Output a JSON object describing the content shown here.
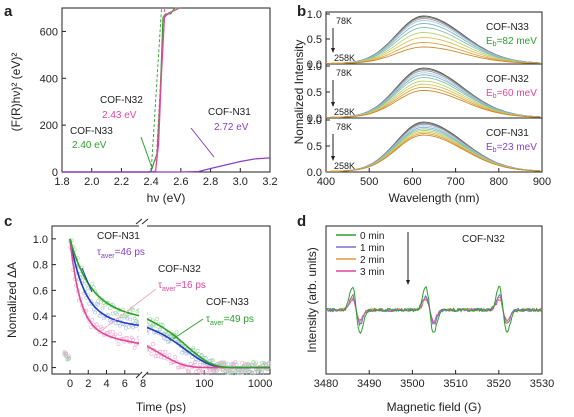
{
  "chart_data": [
    {
      "panel": "a",
      "type": "line",
      "panel_label": "a",
      "xlabel": "hν (eV)",
      "ylabel": "(F(R)hν)² (eV)²",
      "xlim": [
        1.8,
        3.2
      ],
      "ylim": [
        0,
        700
      ],
      "x_ticks": [
        "1.8",
        "2.0",
        "2.2",
        "2.4",
        "2.6",
        "2.8",
        "3.0",
        "3.2"
      ],
      "y_ticks": [
        "0",
        "200",
        "400",
        "600"
      ],
      "colors": {
        "COF-N33": "#2ca02c",
        "COF-N32": "#e0479b",
        "COF-N31": "#8a3fc4"
      },
      "series": [
        {
          "name": "COF-N33",
          "x": [
            1.8,
            2.38,
            2.4,
            2.44,
            2.46,
            2.48,
            2.5,
            2.53,
            2.56,
            2.59
          ],
          "y": [
            0,
            0,
            4,
            80,
            320,
            660,
            675,
            675,
            700,
            700
          ]
        },
        {
          "name": "COF-N32",
          "x": [
            1.8,
            2.4,
            2.43,
            2.45,
            2.47,
            2.49,
            2.52,
            2.56,
            2.59
          ],
          "y": [
            0,
            0,
            4,
            120,
            420,
            660,
            680,
            690,
            700
          ]
        },
        {
          "name": "COF-N31",
          "x": [
            1.8,
            2.6,
            2.72,
            2.8,
            2.9,
            3.0,
            3.1,
            3.2
          ],
          "y": [
            0,
            0,
            2,
            15,
            30,
            45,
            56,
            60
          ]
        }
      ],
      "annotations": {
        "n32_name": "COF-N32",
        "n32_val": "2.43 eV",
        "n33_name": "COF-N33",
        "n33_val": "2.40 eV",
        "n31_name": "COF-N31",
        "n31_val": "2.72 eV"
      }
    },
    {
      "panel": "b",
      "type": "line",
      "panel_label": "b",
      "xlabel": "Wavelength (nm)",
      "ylabel": "Nomalized Intensity",
      "xlim": [
        400,
        900
      ],
      "ylim_per_subplot": [
        0,
        1.0
      ],
      "x_ticks": [
        "400",
        "500",
        "600",
        "700",
        "800",
        "900"
      ],
      "y_ticks": [
        "0.0",
        "0.5",
        "1.0"
      ],
      "temperature_high": "78K",
      "temperature_low": "258K",
      "peak_nm": 625,
      "subplots": [
        {
          "sample": "COF-N33",
          "eb_prefix": "E",
          "eb_sub": "b",
          "eb_value": "=82 meV",
          "label_color": "#2ca02c",
          "amplitudes": [
            0.95,
            0.93,
            0.9,
            0.86,
            0.8,
            0.72,
            0.62,
            0.52,
            0.42,
            0.33
          ]
        },
        {
          "sample": "COF-N32",
          "eb_prefix": "E",
          "eb_sub": "b",
          "eb_value": "=60 meV",
          "label_color": "#e0479b",
          "amplitudes": [
            0.95,
            0.93,
            0.9,
            0.86,
            0.82,
            0.77,
            0.7,
            0.64,
            0.58,
            0.52
          ]
        },
        {
          "sample": "COF-N31",
          "eb_prefix": "E",
          "eb_sub": "b",
          "eb_value": "=23 meV",
          "label_color": "#8a3fc4",
          "amplitudes": [
            0.95,
            0.93,
            0.91,
            0.88,
            0.85,
            0.82,
            0.79,
            0.76,
            0.73,
            0.7
          ]
        }
      ],
      "temperature_colors": [
        "#555555",
        "#7a7a7a",
        "#9a9a9a",
        "#a8c8e0",
        "#7fb3d5",
        "#86c5a3",
        "#b7d36b",
        "#d9c25a",
        "#e0a040",
        "#c98a2e"
      ]
    },
    {
      "panel": "c",
      "type": "scatter",
      "panel_label": "c",
      "xlabel": "Time (ps)",
      "ylabel": "Nomalized ΔA",
      "ylim": [
        -0.05,
        1.1
      ],
      "x_ticks_linear": [
        "0",
        "2",
        "4",
        "6",
        "8"
      ],
      "x_ticks_log": [
        "100",
        "1000"
      ],
      "x_break_tick": "8",
      "y_ticks": [
        "0.0",
        "0.2",
        "0.4",
        "0.6",
        "0.8",
        "1.0"
      ],
      "series": [
        {
          "name": "COF-N31",
          "tau_value": "=46 ps",
          "fit_color": "#1f3fbf",
          "point_color": "#a9b8e8",
          "a1": 0.62,
          "t1": 1.6,
          "a2": 0.38,
          "t2": 46
        },
        {
          "name": "COF-N32",
          "tau_value": "=16 ps",
          "fit_color": "#e0479b",
          "point_color": "#f0a8cc",
          "a1": 0.7,
          "t1": 1.1,
          "a2": 0.3,
          "t2": 16
        },
        {
          "name": "COF-N33",
          "tau_value": "=49 ps",
          "fit_color": "#2ca02c",
          "point_color": "#9dd69d",
          "a1": 0.55,
          "t1": 2.2,
          "a2": 0.45,
          "t2": 49
        }
      ],
      "tau_prefix": "τ",
      "tau_sub": "aver"
    },
    {
      "panel": "d",
      "type": "line",
      "panel_label": "d",
      "xlabel": "Magnetic field (G)",
      "ylabel": "Intensity (arb. units)",
      "xlim": [
        3480,
        3530
      ],
      "x_ticks": [
        "3480",
        "3490",
        "3500",
        "3510",
        "3520",
        "3530"
      ],
      "sample": "COF-N32",
      "line_centers_G": [
        3487,
        3504,
        3521
      ],
      "series": [
        {
          "name": "0 min",
          "color": "#2ca02c",
          "amplitude": 1.0
        },
        {
          "name": "1 min",
          "color": "#7b6fd6",
          "amplitude": 0.62
        },
        {
          "name": "2 min",
          "color": "#e39a3b",
          "amplitude": 0.52
        },
        {
          "name": "3 min",
          "color": "#e0479b",
          "amplitude": 0.45
        }
      ]
    }
  ]
}
